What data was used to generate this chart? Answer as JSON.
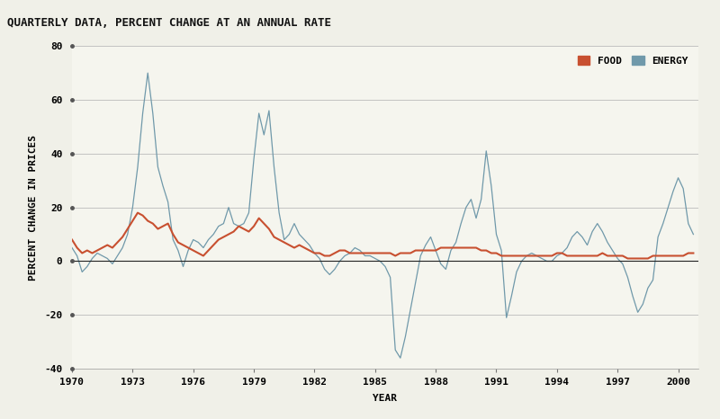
{
  "title": "QUARTERLY DATA, PERCENT CHANGE AT AN ANNUAL RATE",
  "xlabel": "YEAR",
  "ylabel": "PERCENT CHANGE IN PRICES",
  "title_bg_color": "#c8c8b8",
  "plot_bg_color": "#f5f5ee",
  "fig_bg_color": "#f0f0e8",
  "food_color": "#c85030",
  "energy_color": "#7099aa",
  "ylim": [
    -40,
    80
  ],
  "yticks": [
    -40,
    -20,
    0,
    20,
    40,
    60,
    80
  ],
  "xlim": [
    1970,
    2001.0
  ],
  "xticks": [
    1970,
    1973,
    1976,
    1979,
    1982,
    1985,
    1988,
    1991,
    1994,
    1997,
    2000
  ],
  "years": [
    1970.0,
    1970.25,
    1970.5,
    1970.75,
    1971.0,
    1971.25,
    1971.5,
    1971.75,
    1972.0,
    1972.25,
    1972.5,
    1972.75,
    1973.0,
    1973.25,
    1973.5,
    1973.75,
    1974.0,
    1974.25,
    1974.5,
    1974.75,
    1975.0,
    1975.25,
    1975.5,
    1975.75,
    1976.0,
    1976.25,
    1976.5,
    1976.75,
    1977.0,
    1977.25,
    1977.5,
    1977.75,
    1978.0,
    1978.25,
    1978.5,
    1978.75,
    1979.0,
    1979.25,
    1979.5,
    1979.75,
    1980.0,
    1980.25,
    1980.5,
    1980.75,
    1981.0,
    1981.25,
    1981.5,
    1981.75,
    1982.0,
    1982.25,
    1982.5,
    1982.75,
    1983.0,
    1983.25,
    1983.5,
    1983.75,
    1984.0,
    1984.25,
    1984.5,
    1984.75,
    1985.0,
    1985.25,
    1985.5,
    1985.75,
    1986.0,
    1986.25,
    1986.5,
    1986.75,
    1987.0,
    1987.25,
    1987.5,
    1987.75,
    1988.0,
    1988.25,
    1988.5,
    1988.75,
    1989.0,
    1989.25,
    1989.5,
    1989.75,
    1990.0,
    1990.25,
    1990.5,
    1990.75,
    1991.0,
    1991.25,
    1991.5,
    1991.75,
    1992.0,
    1992.25,
    1992.5,
    1992.75,
    1993.0,
    1993.25,
    1993.5,
    1993.75,
    1994.0,
    1994.25,
    1994.5,
    1994.75,
    1995.0,
    1995.25,
    1995.5,
    1995.75,
    1996.0,
    1996.25,
    1996.5,
    1996.75,
    1997.0,
    1997.25,
    1997.5,
    1997.75,
    1998.0,
    1998.25,
    1998.5,
    1998.75,
    1999.0,
    1999.25,
    1999.5,
    1999.75,
    2000.0,
    2000.25,
    2000.5,
    2000.75
  ],
  "food": [
    8,
    5,
    3,
    4,
    3,
    4,
    5,
    6,
    5,
    7,
    9,
    12,
    15,
    18,
    17,
    15,
    14,
    12,
    13,
    14,
    10,
    7,
    6,
    5,
    4,
    3,
    2,
    4,
    6,
    8,
    9,
    10,
    11,
    13,
    12,
    11,
    13,
    16,
    14,
    12,
    9,
    8,
    7,
    6,
    5,
    6,
    5,
    4,
    3,
    3,
    2,
    2,
    3,
    4,
    4,
    3,
    3,
    3,
    3,
    3,
    3,
    3,
    3,
    3,
    2,
    3,
    3,
    3,
    4,
    4,
    4,
    4,
    4,
    5,
    5,
    5,
    5,
    5,
    5,
    5,
    5,
    4,
    4,
    3,
    3,
    2,
    2,
    2,
    2,
    2,
    2,
    2,
    2,
    2,
    2,
    2,
    3,
    3,
    2,
    2,
    2,
    2,
    2,
    2,
    2,
    3,
    2,
    2,
    2,
    2,
    1,
    1,
    1,
    1,
    1,
    2,
    2,
    2,
    2,
    2,
    2,
    2,
    3,
    3
  ],
  "energy": [
    5,
    2,
    -4,
    -2,
    1,
    3,
    2,
    1,
    -1,
    2,
    5,
    10,
    20,
    35,
    55,
    70,
    55,
    35,
    28,
    22,
    8,
    4,
    -2,
    4,
    8,
    7,
    5,
    8,
    10,
    13,
    14,
    20,
    14,
    13,
    14,
    18,
    38,
    55,
    47,
    56,
    35,
    18,
    8,
    10,
    14,
    10,
    8,
    6,
    3,
    1,
    -3,
    -5,
    -3,
    0,
    2,
    3,
    5,
    4,
    2,
    2,
    1,
    0,
    -2,
    -6,
    -33,
    -36,
    -28,
    -18,
    -8,
    2,
    6,
    9,
    4,
    -1,
    -3,
    4,
    7,
    14,
    20,
    23,
    16,
    23,
    41,
    28,
    10,
    4,
    -21,
    -13,
    -4,
    0,
    2,
    3,
    2,
    1,
    0,
    0,
    2,
    3,
    5,
    9,
    11,
    9,
    6,
    11,
    14,
    11,
    7,
    4,
    1,
    -1,
    -6,
    -13,
    -19,
    -16,
    -10,
    -7,
    9,
    14,
    20,
    26,
    31,
    27,
    14,
    10
  ],
  "title_fontsize": 9,
  "axis_label_fontsize": 8,
  "tick_fontsize": 8,
  "legend_fontsize": 8
}
